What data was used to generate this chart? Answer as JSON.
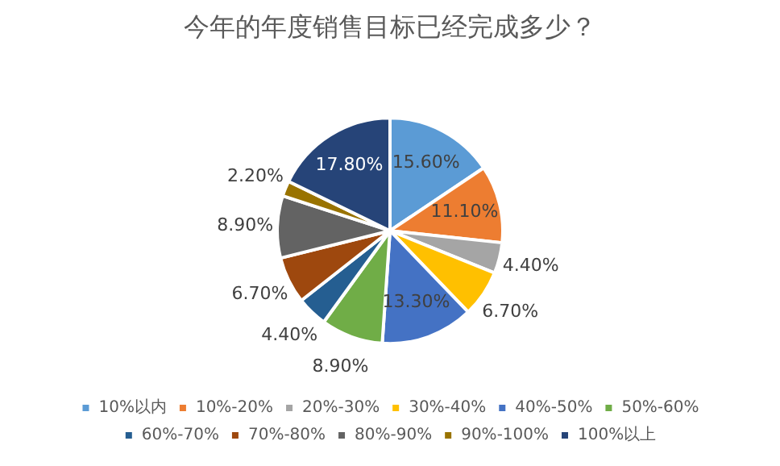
{
  "chart_data": {
    "type": "pie",
    "title": "今年的年度销售目标已经完成多少？",
    "categories": [
      "10%以内",
      "10%-20%",
      "20%-30%",
      "30%-40%",
      "40%-50%",
      "50%-60%",
      "60%-70%",
      "70%-80%",
      "80%-90%",
      "90%-100%",
      "100%以上"
    ],
    "values": [
      15.6,
      11.1,
      4.4,
      6.7,
      13.3,
      8.9,
      4.4,
      6.7,
      8.9,
      2.2,
      17.8
    ],
    "value_labels": [
      "15.60%",
      "11.10%",
      "4.40%",
      "6.70%",
      "13.30%",
      "8.90%",
      "4.40%",
      "6.70%",
      "8.90%",
      "2.20%",
      "17.80%"
    ],
    "colors": [
      "#5b9bd5",
      "#ed7d31",
      "#a5a5a5",
      "#ffc000",
      "#4472c4",
      "#70ad47",
      "#255e91",
      "#9e480e",
      "#636363",
      "#997300",
      "#264478"
    ],
    "legend": "bottom"
  }
}
